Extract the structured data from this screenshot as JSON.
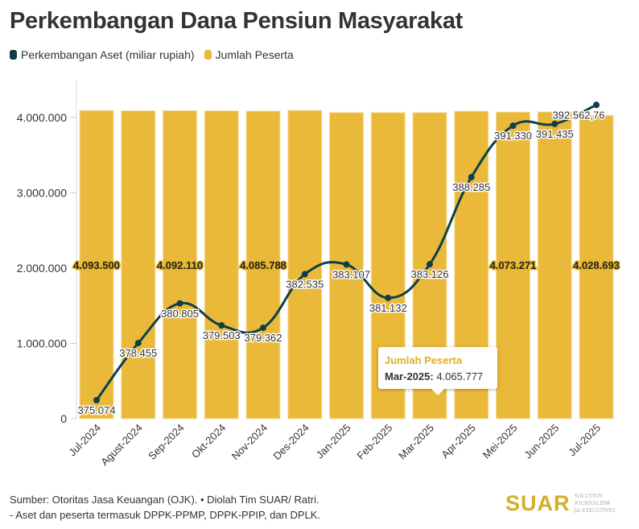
{
  "title": "Perkembangan Dana Pensiun Masyarakat",
  "legend": [
    {
      "label": "Perkembangan Aset (miliar rupiah)",
      "color": "#0d3f4a"
    },
    {
      "label": "Jumlah Peserta",
      "color": "#ebb93a"
    }
  ],
  "chart_data": {
    "type": "bar+line",
    "title": "Perkembangan Dana Pensiun Masyarakat",
    "categories": [
      "Jul-2024",
      "Agust-2024",
      "Sep-2024",
      "Okt-2024",
      "Nov-2024",
      "Des-2024",
      "Jan-2025",
      "Feb-2025",
      "Mar-2025",
      "Apr-2025",
      "Mei-2025",
      "Jun-2025",
      "Jul-2025"
    ],
    "y_ticks": [
      "0",
      "1.000.000",
      "2.000.000",
      "3.000.000",
      "4.000.000"
    ],
    "ylim": [
      0,
      4400000
    ],
    "grid": true,
    "legend_position": "top-left",
    "series": [
      {
        "name": "Jumlah Peserta",
        "type": "bar",
        "color": "#ebb93a",
        "values": [
          4093500,
          4090000,
          4092110,
          4090000,
          4085788,
          4095000,
          4066000,
          4066000,
          4065777,
          4085000,
          4073271,
          4075000,
          4028693
        ],
        "labels": [
          "4.093.500",
          null,
          "4.092.110",
          null,
          "4.085.788",
          null,
          null,
          null,
          null,
          null,
          "4.073.271",
          null,
          "4.028.693"
        ]
      },
      {
        "name": "Perkembangan Aset (miliar rupiah)",
        "type": "line",
        "color": "#0d3f4a",
        "axis": "secondary-hidden",
        "values": [
          375074,
          378455,
          380805,
          379503,
          379362,
          382535,
          383107,
          381132,
          383126,
          388285,
          391330,
          391435,
          392562.76
        ],
        "labels": [
          "375.074",
          "378.455",
          "380.805",
          "379.503",
          "379.362",
          "382.535",
          "383.107",
          "381.132",
          "383.126",
          "388.285",
          "391.330",
          "391.435",
          "392.562,76"
        ]
      }
    ]
  },
  "tooltip": {
    "title": "Jumlah Peserta",
    "category": "Mar-2025:",
    "value": "4.065.777"
  },
  "footer": {
    "line1": "Sumber: Otoritas Jasa Keuangan (OJK). • Diolah Tim SUAR/ Ratri.",
    "line2": "- Aset dan peserta termasuk DPPK-PPMP, DPPK-PPIP, dan DPLK."
  },
  "logo": {
    "main": "SUAR",
    "sub1": "SOLUTION JOURNALISM",
    "sub2": "for EXECUTIVES"
  }
}
